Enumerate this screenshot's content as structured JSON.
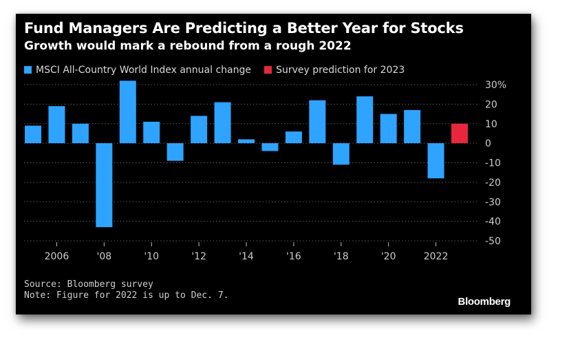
{
  "header": {
    "title": "Fund Managers Are Predicting a Better Year for Stocks",
    "subtitle": "Growth would mark a rebound from a rough 2022"
  },
  "legend": [
    {
      "label": "MSCI All-Country World Index annual change",
      "color": "#2ea3ff"
    },
    {
      "label": "Survey prediction for 2023",
      "color": "#e8273e"
    }
  ],
  "footnotes": {
    "source": "Source: Bloomberg survey",
    "note": "Note: Figure for 2022 is up to Dec. 7."
  },
  "brand": "Bloomberg",
  "colors": {
    "background": "#000000",
    "actual": "#2ea3ff",
    "prediction": "#e8273e",
    "grid": "#555555",
    "text": "#cccccc"
  },
  "chart_data": {
    "type": "bar",
    "title": "Fund Managers Are Predicting a Better Year for Stocks",
    "subtitle": "Growth would mark a rebound from a rough 2022",
    "xlabel": "",
    "ylabel": "",
    "ylim": [
      -50,
      30
    ],
    "yticks": [
      30,
      20,
      10,
      0,
      -10,
      -20,
      -30,
      -40,
      -50
    ],
    "ytick_labels": [
      "30%",
      "20",
      "10",
      "0",
      "-10",
      "-20",
      "-30",
      "-40",
      "-50"
    ],
    "xticks": [
      2006,
      2008,
      2010,
      2012,
      2014,
      2016,
      2018,
      2020,
      2022
    ],
    "xtick_labels": [
      "2006",
      "'08",
      "'10",
      "'12",
      "'14",
      "'16",
      "'18",
      "'20",
      "2022"
    ],
    "grid": "horizontal dotted",
    "legend_position": "top-left",
    "series": [
      {
        "name": "MSCI All-Country World Index annual change",
        "color": "#2ea3ff",
        "x": [
          2005,
          2006,
          2007,
          2008,
          2009,
          2010,
          2011,
          2012,
          2013,
          2014,
          2015,
          2016,
          2017,
          2018,
          2019,
          2020,
          2021,
          2022
        ],
        "values": [
          9,
          19,
          10,
          -43,
          32,
          11,
          -9,
          14,
          21,
          2,
          -4,
          6,
          22,
          -11,
          24,
          15,
          17,
          -18
        ]
      },
      {
        "name": "Survey prediction for 2023",
        "color": "#e8273e",
        "x": [
          2023
        ],
        "values": [
          10
        ]
      }
    ]
  }
}
